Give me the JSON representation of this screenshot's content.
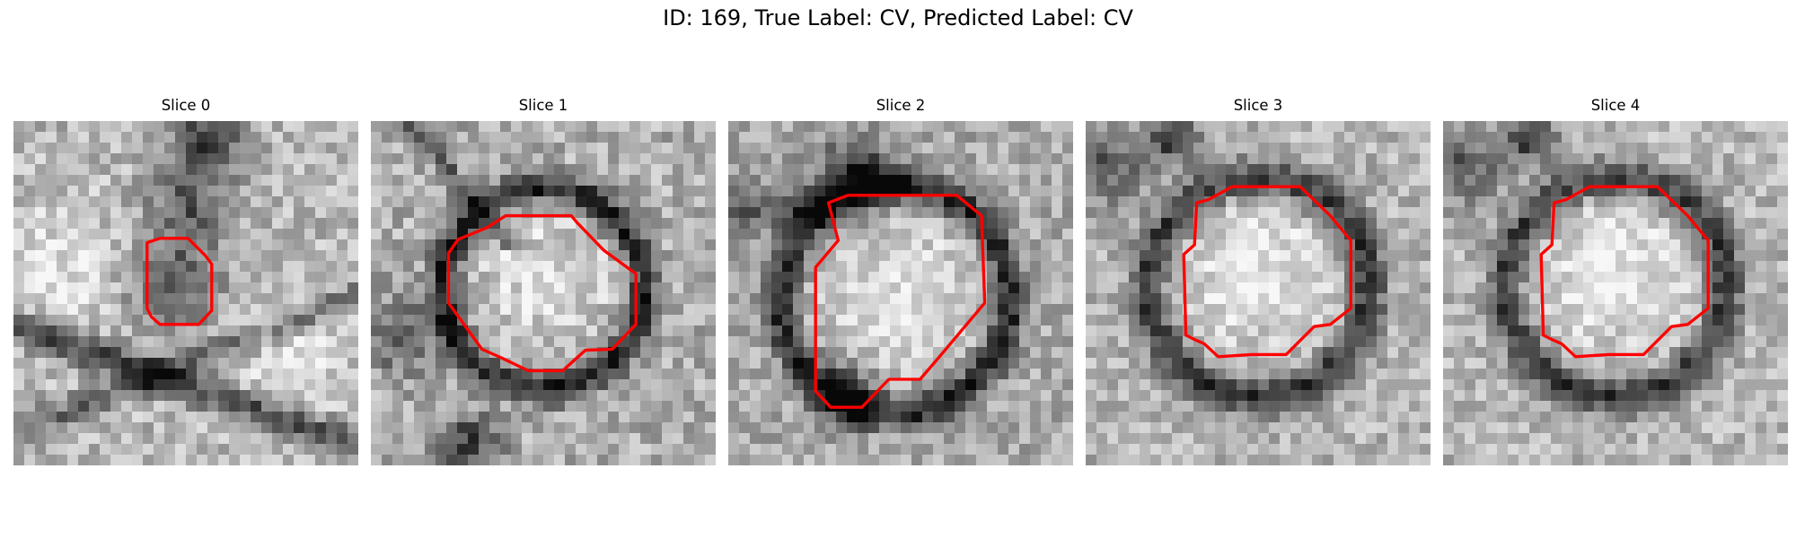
{
  "figure": {
    "title": "ID: 169, True Label: CV, Predicted Label: CV"
  },
  "panels": [
    {
      "title": "Slice 0",
      "image": "grayscale-microscopy-slice",
      "contour_color": "#ff0000"
    },
    {
      "title": "Slice 1",
      "image": "grayscale-microscopy-slice",
      "contour_color": "#ff0000"
    },
    {
      "title": "Slice 2",
      "image": "grayscale-microscopy-slice",
      "contour_color": "#ff0000"
    },
    {
      "title": "Slice 3",
      "image": "grayscale-microscopy-slice",
      "contour_color": "#ff0000"
    },
    {
      "title": "Slice 4",
      "image": "grayscale-microscopy-slice",
      "contour_color": "#ff0000"
    }
  ]
}
